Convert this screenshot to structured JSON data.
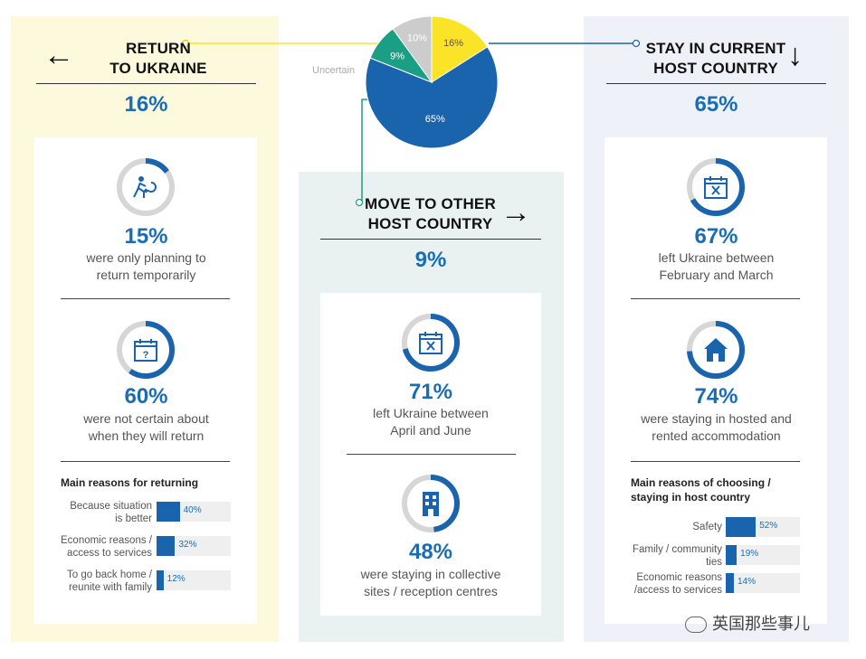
{
  "chart_data": {
    "type": "pie",
    "slices": [
      {
        "label": "16%",
        "value": 16,
        "color": "#fbe327"
      },
      {
        "label": "65%",
        "value": 65,
        "color": "#1a63ad"
      },
      {
        "label": "9%",
        "value": 9,
        "color": "#1a9e84"
      },
      {
        "label": "10%",
        "value": 10,
        "color": "#cccccc"
      }
    ],
    "uncertain_label": "Uncertain"
  },
  "left": {
    "title_line1": "RETURN",
    "title_line2": "TO UKRAINE",
    "arrow": "←",
    "pct": "16%",
    "stats": [
      {
        "value": "15%",
        "desc1": "were only planning to",
        "desc2": "return temporarily",
        "icon": "person-return-icon",
        "fraction": 0.15
      },
      {
        "value": "60%",
        "desc1": "were not certain about",
        "desc2": "when they will return",
        "icon": "calendar-question-icon",
        "fraction": 0.6
      }
    ],
    "reasons_title": "Main reasons for returning",
    "reasons": [
      {
        "label1": "Because situation",
        "label2": "is better",
        "value": 40,
        "text": "40%"
      },
      {
        "label1": "Economic reasons /",
        "label2": "access to services",
        "value": 32,
        "text": "32%"
      },
      {
        "label1": "To go back home /",
        "label2": "reunite with family",
        "value": 12,
        "text": "12%"
      }
    ]
  },
  "mid": {
    "title_line1": "MOVE TO OTHER",
    "title_line2": "HOST COUNTRY",
    "arrow": "→",
    "pct": "9%",
    "stats": [
      {
        "value": "71%",
        "desc1": "left Ukraine between",
        "desc2": "April and June",
        "icon": "calendar-x-icon",
        "fraction": 0.71
      },
      {
        "value": "48%",
        "desc1": "were staying in collective",
        "desc2": "sites / reception centres",
        "icon": "building-icon",
        "fraction": 0.48
      }
    ]
  },
  "right": {
    "title_line1": "STAY IN CURRENT",
    "title_line2": "HOST COUNTRY",
    "arrow": "↓",
    "pct": "65%",
    "stats": [
      {
        "value": "67%",
        "desc1": "left Ukraine between",
        "desc2": "February and March",
        "icon": "calendar-x-icon",
        "fraction": 0.67
      },
      {
        "value": "74%",
        "desc1": "were staying in hosted and",
        "desc2": "rented accommodation",
        "icon": "house-icon",
        "fraction": 0.74
      }
    ],
    "reasons_title1": "Main reasons of choosing /",
    "reasons_title2": "staying in host country",
    "reasons": [
      {
        "label1": "Safety",
        "label2": "",
        "value": 52,
        "text": "52%"
      },
      {
        "label1": "Family / community",
        "label2": "ties",
        "value": 19,
        "text": "19%"
      },
      {
        "label1": "Economic reasons",
        "label2": "/access to services",
        "value": 14,
        "text": "14%"
      }
    ]
  },
  "watermark": "英国那些事儿",
  "colors": {
    "accent_blue": "#1a6db5",
    "bar_blue": "#1a63ad",
    "ring_grey": "#d6d6d6",
    "yellow": "#fbe327",
    "green": "#1a9e84"
  }
}
